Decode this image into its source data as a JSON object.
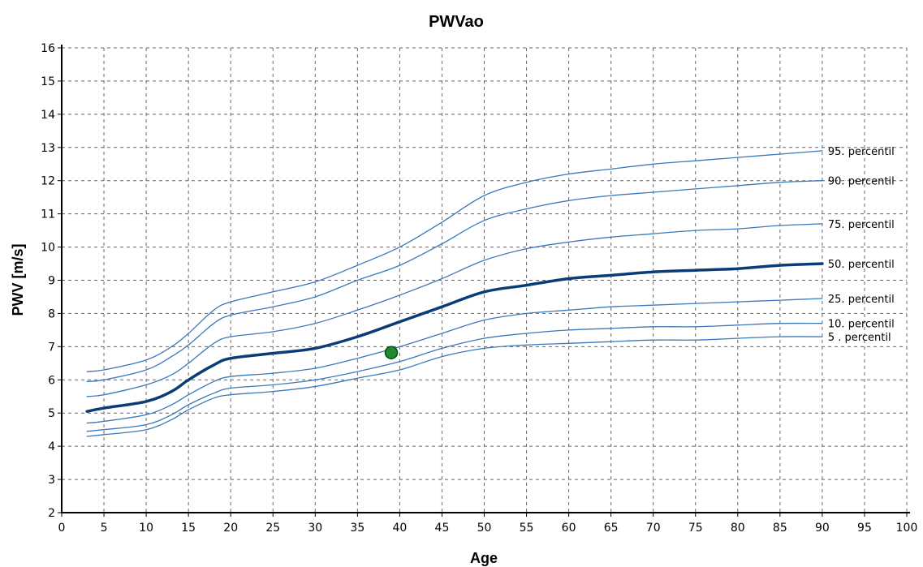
{
  "chart_data": {
    "type": "line",
    "title": "PWVao",
    "xlabel": "Age",
    "ylabel": "PWV [m/s]",
    "xlim": [
      0,
      100
    ],
    "ylim": [
      2,
      16
    ],
    "x_ticks": [
      0,
      5,
      10,
      15,
      20,
      25,
      30,
      35,
      40,
      45,
      50,
      55,
      60,
      65,
      70,
      75,
      80,
      85,
      90,
      95,
      100
    ],
    "y_ticks": [
      2,
      3,
      4,
      5,
      6,
      7,
      8,
      9,
      10,
      11,
      12,
      13,
      14,
      15,
      16
    ],
    "grid": true,
    "x": [
      3,
      5,
      10,
      13,
      15,
      18,
      20,
      25,
      30,
      35,
      40,
      45,
      50,
      55,
      60,
      65,
      70,
      75,
      80,
      85,
      90
    ],
    "series": [
      {
        "name": "95. percentil",
        "color": "#3b78b8",
        "bold": false,
        "values": [
          6.25,
          6.3,
          6.6,
          7.0,
          7.4,
          8.1,
          8.35,
          8.65,
          8.95,
          9.45,
          10.0,
          10.75,
          11.55,
          11.95,
          12.2,
          12.35,
          12.5,
          12.6,
          12.7,
          12.8,
          12.9
        ]
      },
      {
        "name": "90. percentil",
        "color": "#3b78b8",
        "bold": false,
        "values": [
          5.95,
          6.0,
          6.3,
          6.7,
          7.05,
          7.7,
          7.95,
          8.2,
          8.5,
          9.0,
          9.45,
          10.1,
          10.8,
          11.15,
          11.4,
          11.55,
          11.65,
          11.75,
          11.85,
          11.95,
          12.0
        ]
      },
      {
        "name": "75. percentil",
        "color": "#3b78b8",
        "bold": false,
        "values": [
          5.5,
          5.55,
          5.85,
          6.15,
          6.5,
          7.1,
          7.3,
          7.45,
          7.7,
          8.1,
          8.55,
          9.05,
          9.6,
          9.95,
          10.15,
          10.3,
          10.4,
          10.5,
          10.55,
          10.65,
          10.7
        ]
      },
      {
        "name": "50. percentil",
        "color": "#0a3d78",
        "bold": true,
        "values": [
          5.05,
          5.15,
          5.35,
          5.65,
          6.0,
          6.45,
          6.65,
          6.8,
          6.95,
          7.3,
          7.75,
          8.2,
          8.65,
          8.85,
          9.05,
          9.15,
          9.25,
          9.3,
          9.35,
          9.45,
          9.5
        ]
      },
      {
        "name": "25. percentil",
        "color": "#3b78b8",
        "bold": false,
        "values": [
          4.7,
          4.75,
          4.95,
          5.25,
          5.55,
          5.95,
          6.1,
          6.2,
          6.35,
          6.65,
          7.0,
          7.4,
          7.8,
          8.0,
          8.1,
          8.2,
          8.25,
          8.3,
          8.35,
          8.4,
          8.45
        ]
      },
      {
        "name": "10. percentil",
        "color": "#3b78b8",
        "bold": false,
        "values": [
          4.45,
          4.5,
          4.65,
          4.95,
          5.25,
          5.6,
          5.75,
          5.85,
          6.0,
          6.25,
          6.55,
          6.95,
          7.25,
          7.4,
          7.5,
          7.55,
          7.6,
          7.6,
          7.65,
          7.7,
          7.7
        ]
      },
      {
        "name": "5 . percentil",
        "color": "#3b78b8",
        "bold": false,
        "values": [
          4.3,
          4.35,
          4.5,
          4.8,
          5.1,
          5.45,
          5.55,
          5.65,
          5.8,
          6.05,
          6.3,
          6.7,
          6.95,
          7.05,
          7.1,
          7.15,
          7.2,
          7.2,
          7.25,
          7.3,
          7.3
        ]
      }
    ],
    "marker_point": {
      "x": 39,
      "y": 6.82,
      "color": "#1f8a2e",
      "edge_color": "#0d4a12"
    },
    "colors": {
      "axis": "#000000",
      "grid": "#666666",
      "background": "#ffffff"
    }
  }
}
